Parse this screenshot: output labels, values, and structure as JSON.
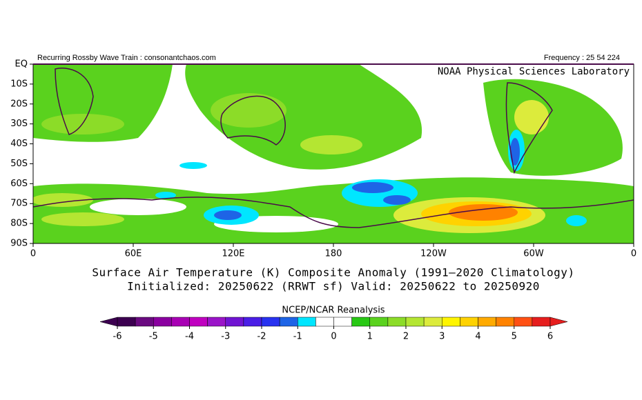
{
  "header": {
    "left": "Recurring Rossby Wave Train : consonantchaos.com",
    "right": "Frequency : 25 54 224"
  },
  "chart_data": {
    "type": "map",
    "credit": "NOAA Physical Sciences Laboratory",
    "title": "Surface Air Temperature (K) Composite Anomaly (1991–2020 Climatology)",
    "subtitle": "Initialized: 20250622 (RRWT sf) Valid: 20250622 to 20250920",
    "xlim": [
      0,
      360
    ],
    "ylim": [
      -90,
      0
    ],
    "xticks": [
      0,
      {
        "value": 60,
        "label": "60E"
      },
      {
        "value": 120,
        "label": "120E"
      },
      180,
      {
        "value": 240,
        "label": "120W"
      },
      {
        "value": 300,
        "label": "60W"
      },
      {
        "value": 360,
        "label": "0"
      }
    ],
    "yticks": [
      {
        "value": 0,
        "label": "EQ"
      },
      {
        "value": -10,
        "label": "10S"
      },
      {
        "value": -20,
        "label": "20S"
      },
      {
        "value": -30,
        "label": "30S"
      },
      {
        "value": -40,
        "label": "40S"
      },
      {
        "value": -50,
        "label": "50S"
      },
      {
        "value": -60,
        "label": "60S"
      },
      {
        "value": -70,
        "label": "70S"
      },
      {
        "value": -80,
        "label": "80S"
      },
      {
        "value": -90,
        "label": "90S"
      }
    ],
    "colorbar": {
      "title": "NCEP/NCAR Reanalysis",
      "levels": [
        -6,
        -5.5,
        -5,
        -4.5,
        -4,
        -3.5,
        -3,
        -2.5,
        -2,
        -1.5,
        -1,
        -0.5,
        0,
        0.5,
        1,
        1.5,
        2,
        2.5,
        3,
        3.5,
        4,
        4.5,
        5,
        5.5,
        6
      ],
      "colors": [
        "#3c0050",
        "#6a0a80",
        "#8a00a0",
        "#a800b4",
        "#c000c0",
        "#9a14c8",
        "#7014d2",
        "#4a1ee6",
        "#2832f0",
        "#1e64e6",
        "#00e6ff",
        "#ffffff",
        "#ffffff",
        "#28c814",
        "#5ad21e",
        "#8cdc28",
        "#b4e632",
        "#dceb3c",
        "#fff500",
        "#ffd200",
        "#ffaa00",
        "#ff8200",
        "#ff5014",
        "#e61e1e"
      ],
      "ticks": [
        -6,
        -5,
        -4,
        -3,
        -2,
        -1,
        0,
        1,
        2,
        3,
        4,
        5,
        6
      ]
    }
  }
}
